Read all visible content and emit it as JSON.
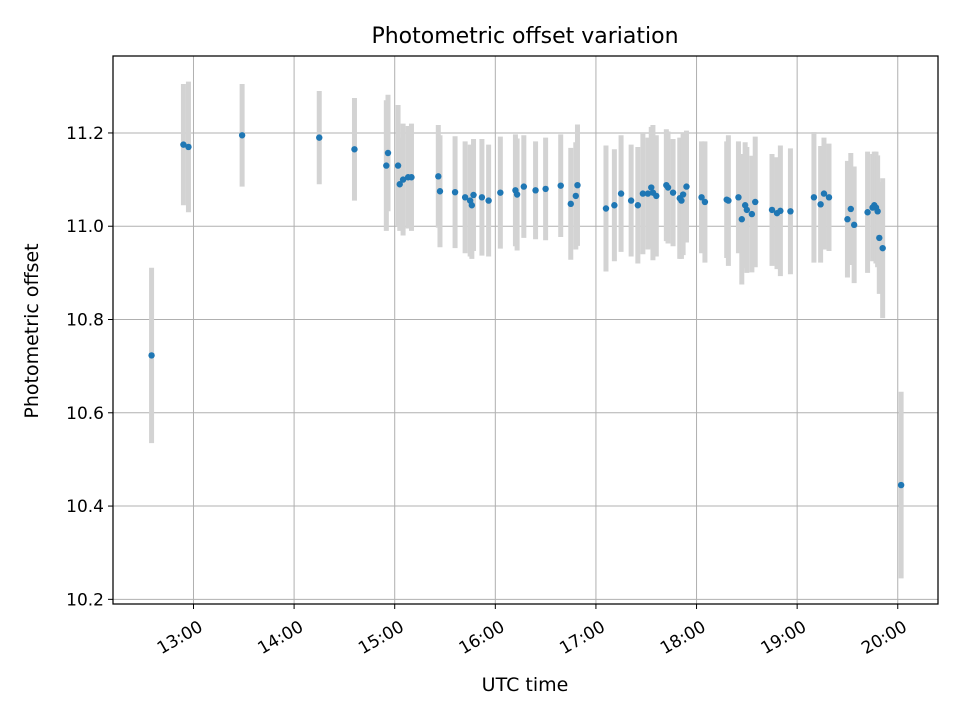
{
  "chart_data": {
    "type": "scatter",
    "title": "Photometric offset variation",
    "xlabel": "UTC time",
    "ylabel": "Photometric offset",
    "xlim": [
      "12:12",
      "20:24"
    ],
    "ylim": [
      10.19,
      11.365
    ],
    "grid": true,
    "x_ticks": [
      {
        "value": "13:00",
        "label": "13:00"
      },
      {
        "value": "14:00",
        "label": "14:00"
      },
      {
        "value": "15:00",
        "label": "15:00"
      },
      {
        "value": "16:00",
        "label": "16:00"
      },
      {
        "value": "17:00",
        "label": "17:00"
      },
      {
        "value": "18:00",
        "label": "18:00"
      },
      {
        "value": "19:00",
        "label": "19:00"
      },
      {
        "value": "20:00",
        "label": "20:00"
      }
    ],
    "y_ticks": [
      {
        "value": 10.2,
        "label": "10.2"
      },
      {
        "value": 10.4,
        "label": "10.4"
      },
      {
        "value": 10.6,
        "label": "10.6"
      },
      {
        "value": 10.8,
        "label": "10.8"
      },
      {
        "value": 11.0,
        "label": "11.0"
      },
      {
        "value": 11.2,
        "label": "11.2"
      }
    ],
    "colors": {
      "point": "#1f77b4",
      "errorbar": "#d3d3d3",
      "grid": "#b0b0b0"
    },
    "series": [
      {
        "x": [
          "12:35",
          "12:54",
          "12:57",
          "13:29",
          "14:15",
          "14:36",
          "14:55",
          "14:56",
          "15:02",
          "15:03",
          "15:05",
          "15:08",
          "15:10",
          "15:26",
          "15:27",
          "15:36",
          "15:42",
          "15:45",
          "15:46",
          "15:47",
          "15:52",
          "15:56",
          "16:03",
          "16:12",
          "16:13",
          "16:17",
          "16:24",
          "16:30",
          "16:39",
          "16:45",
          "16:48",
          "16:49",
          "17:06",
          "17:11",
          "17:15",
          "17:21",
          "17:25",
          "17:28",
          "17:31",
          "17:33",
          "17:34",
          "17:36",
          "17:42",
          "17:43",
          "17:46",
          "17:50",
          "17:51",
          "17:52",
          "17:54",
          "18:03",
          "18:05",
          "18:18",
          "18:19",
          "18:25",
          "18:27",
          "18:29",
          "18:30",
          "18:33",
          "18:35",
          "18:45",
          "18:48",
          "18:50",
          "18:56",
          "19:10",
          "19:14",
          "19:16",
          "19:19",
          "19:30",
          "19:32",
          "19:34",
          "19:42",
          "19:45",
          "19:46",
          "19:47",
          "19:48",
          "19:49",
          "19:51",
          "20:02"
        ],
        "y": [
          10.723,
          11.175,
          11.17,
          11.195,
          11.19,
          11.165,
          11.13,
          11.157,
          11.13,
          11.09,
          11.1,
          11.105,
          11.105,
          11.107,
          11.075,
          11.073,
          11.062,
          11.055,
          11.045,
          11.067,
          11.062,
          11.055,
          11.072,
          11.077,
          11.068,
          11.085,
          11.077,
          11.08,
          11.087,
          11.048,
          11.065,
          11.088,
          11.038,
          11.045,
          11.07,
          11.055,
          11.045,
          11.07,
          11.07,
          11.083,
          11.072,
          11.065,
          11.088,
          11.083,
          11.072,
          11.06,
          11.055,
          11.068,
          11.085,
          11.062,
          11.052,
          11.057,
          11.055,
          11.062,
          11.015,
          11.045,
          11.035,
          11.026,
          11.052,
          11.035,
          11.028,
          11.033,
          11.032,
          11.062,
          11.047,
          11.07,
          11.062,
          11.015,
          11.037,
          11.003,
          11.03,
          11.04,
          11.045,
          11.04,
          11.032,
          10.975,
          10.953,
          10.445
        ],
        "err": [
          0.188,
          0.13,
          0.14,
          0.11,
          0.1,
          0.11,
          0.14,
          0.125,
          0.13,
          0.1,
          0.12,
          0.11,
          0.115,
          0.11,
          0.12,
          0.12,
          0.12,
          0.12,
          0.115,
          0.12,
          0.125,
          0.12,
          0.12,
          0.12,
          0.12,
          0.11,
          0.105,
          0.11,
          0.11,
          0.12,
          0.115,
          0.13,
          0.135,
          0.12,
          0.125,
          0.12,
          0.125,
          0.13,
          0.12,
          0.13,
          0.145,
          0.13,
          0.12,
          0.12,
          0.115,
          0.13,
          0.125,
          0.13,
          0.12,
          0.12,
          0.13,
          0.125,
          0.14,
          0.12,
          0.14,
          0.135,
          0.135,
          0.125,
          0.14,
          0.12,
          0.12,
          0.14,
          0.135,
          0.14,
          0.125,
          0.12,
          0.115,
          0.125,
          0.12,
          0.125,
          0.13,
          0.115,
          0.115,
          0.12,
          0.12,
          0.12,
          0.15,
          0.2
        ]
      }
    ]
  }
}
